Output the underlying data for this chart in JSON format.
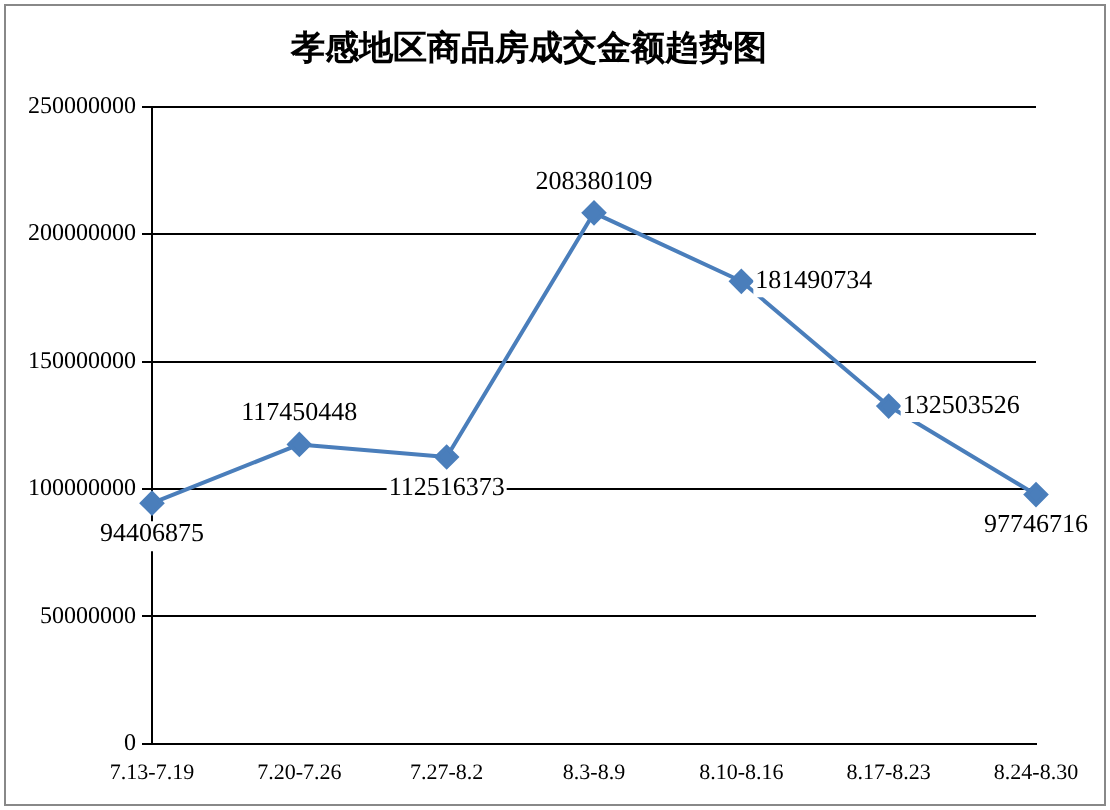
{
  "chart_data": {
    "type": "line",
    "title": "孝感地区商品房成交金额趋势图",
    "categories": [
      "7.13-7.19",
      "7.20-7.26",
      "7.27-8.2",
      "8.3-8.9",
      "8.10-8.16",
      "8.17-8.23",
      "8.24-8.30"
    ],
    "series": [
      {
        "color": "#4a7ebb",
        "values": [
          94406875,
          117450448,
          112516373,
          208380109,
          181490734,
          132503526,
          97746716
        ]
      }
    ],
    "ylim": [
      0,
      250000000
    ],
    "yticks": [
      0,
      50000000,
      100000000,
      150000000,
      200000000,
      250000000
    ],
    "grid": "y",
    "legend": false,
    "marker": "diamond",
    "line_style": "solid",
    "data_labels": true
  }
}
